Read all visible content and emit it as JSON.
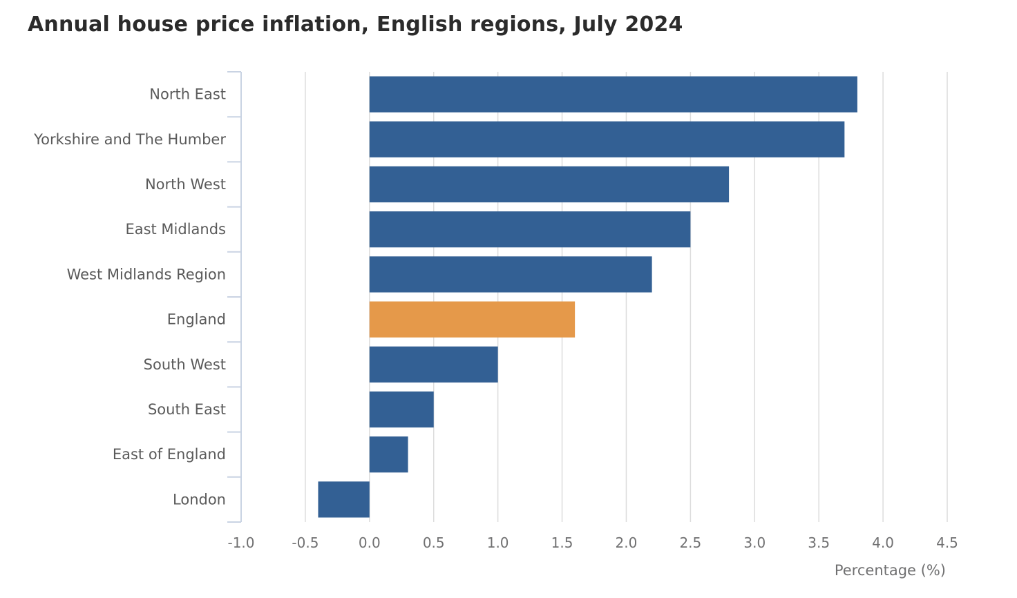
{
  "chart_data": {
    "type": "bar",
    "orientation": "horizontal",
    "title": "Annual house price inflation, English regions, July 2024",
    "xlabel": "Percentage (%)",
    "ylabel": "",
    "xlim": [
      -1.0,
      4.5
    ],
    "x_ticks": [
      "-1.0",
      "-0.5",
      "0.0",
      "0.5",
      "1.0",
      "1.5",
      "2.0",
      "2.5",
      "3.0",
      "3.5",
      "4.0",
      "4.5"
    ],
    "x_tick_values": [
      -1.0,
      -0.5,
      0.0,
      0.5,
      1.0,
      1.5,
      2.0,
      2.5,
      3.0,
      3.5,
      4.0,
      4.5
    ],
    "grid": "vertical",
    "legend": "none",
    "categories": [
      "North East",
      "Yorkshire and The Humber",
      "North West",
      "East Midlands",
      "West Midlands Region",
      "England",
      "South West",
      "South East",
      "East of England",
      "London"
    ],
    "values": [
      3.8,
      3.7,
      2.8,
      2.5,
      2.2,
      1.6,
      1.0,
      0.5,
      0.3,
      -0.4
    ],
    "bar_colors": [
      "#336094",
      "#336094",
      "#336094",
      "#336094",
      "#336094",
      "#e5994a",
      "#336094",
      "#336094",
      "#336094",
      "#336094"
    ],
    "colors": {
      "bar": "#336094",
      "highlight": "#e5994a",
      "grid": "#dcdcdc",
      "axis": "#c9d3e3"
    }
  }
}
